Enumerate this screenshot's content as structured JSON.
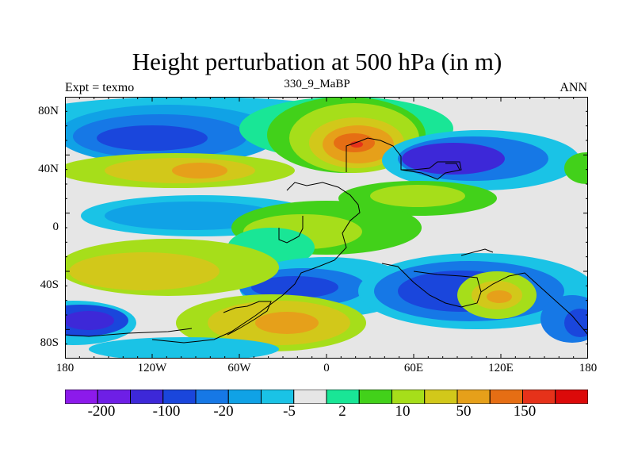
{
  "plot": {
    "title": "Height perturbation at 500 hPa (in m)",
    "left_string": "Expt = texmo",
    "center_string": "330_9_MaBP",
    "right_string": "ANN"
  },
  "axes": {
    "y_ticks": [
      "80N",
      "40N",
      "0",
      "40S",
      "80S"
    ],
    "x_ticks": [
      "180",
      "120W",
      "60W",
      "0",
      "60E",
      "120E",
      "180"
    ]
  },
  "colorbar": {
    "colors": [
      "#8c1aeb",
      "#6e1fe6",
      "#3d28d8",
      "#1a46dc",
      "#1678e6",
      "#10a2e6",
      "#1ac3e6",
      "#e6e6e6",
      "#19e696",
      "#42d11a",
      "#a6de1a",
      "#d2c81a",
      "#e6a01a",
      "#e66e14",
      "#e6321a",
      "#dc0a0a"
    ],
    "labels": [
      "-200",
      "-100",
      "-20",
      "-5",
      "2",
      "10",
      "50",
      "150"
    ]
  },
  "field_colors": {
    "background": "#e6e6e6",
    "cyan": "#1ac3e6",
    "light_blue": "#10a2e6",
    "blue": "#1678e6",
    "dark_blue": "#1a46dc",
    "deep_blue": "#3d28d8",
    "aquamarine": "#19e696",
    "green": "#42d11a",
    "lime": "#a6de1a",
    "olive": "#d2c81a",
    "orange": "#e6a01a",
    "dark_orange": "#e66e14",
    "red": "#e6321a"
  }
}
